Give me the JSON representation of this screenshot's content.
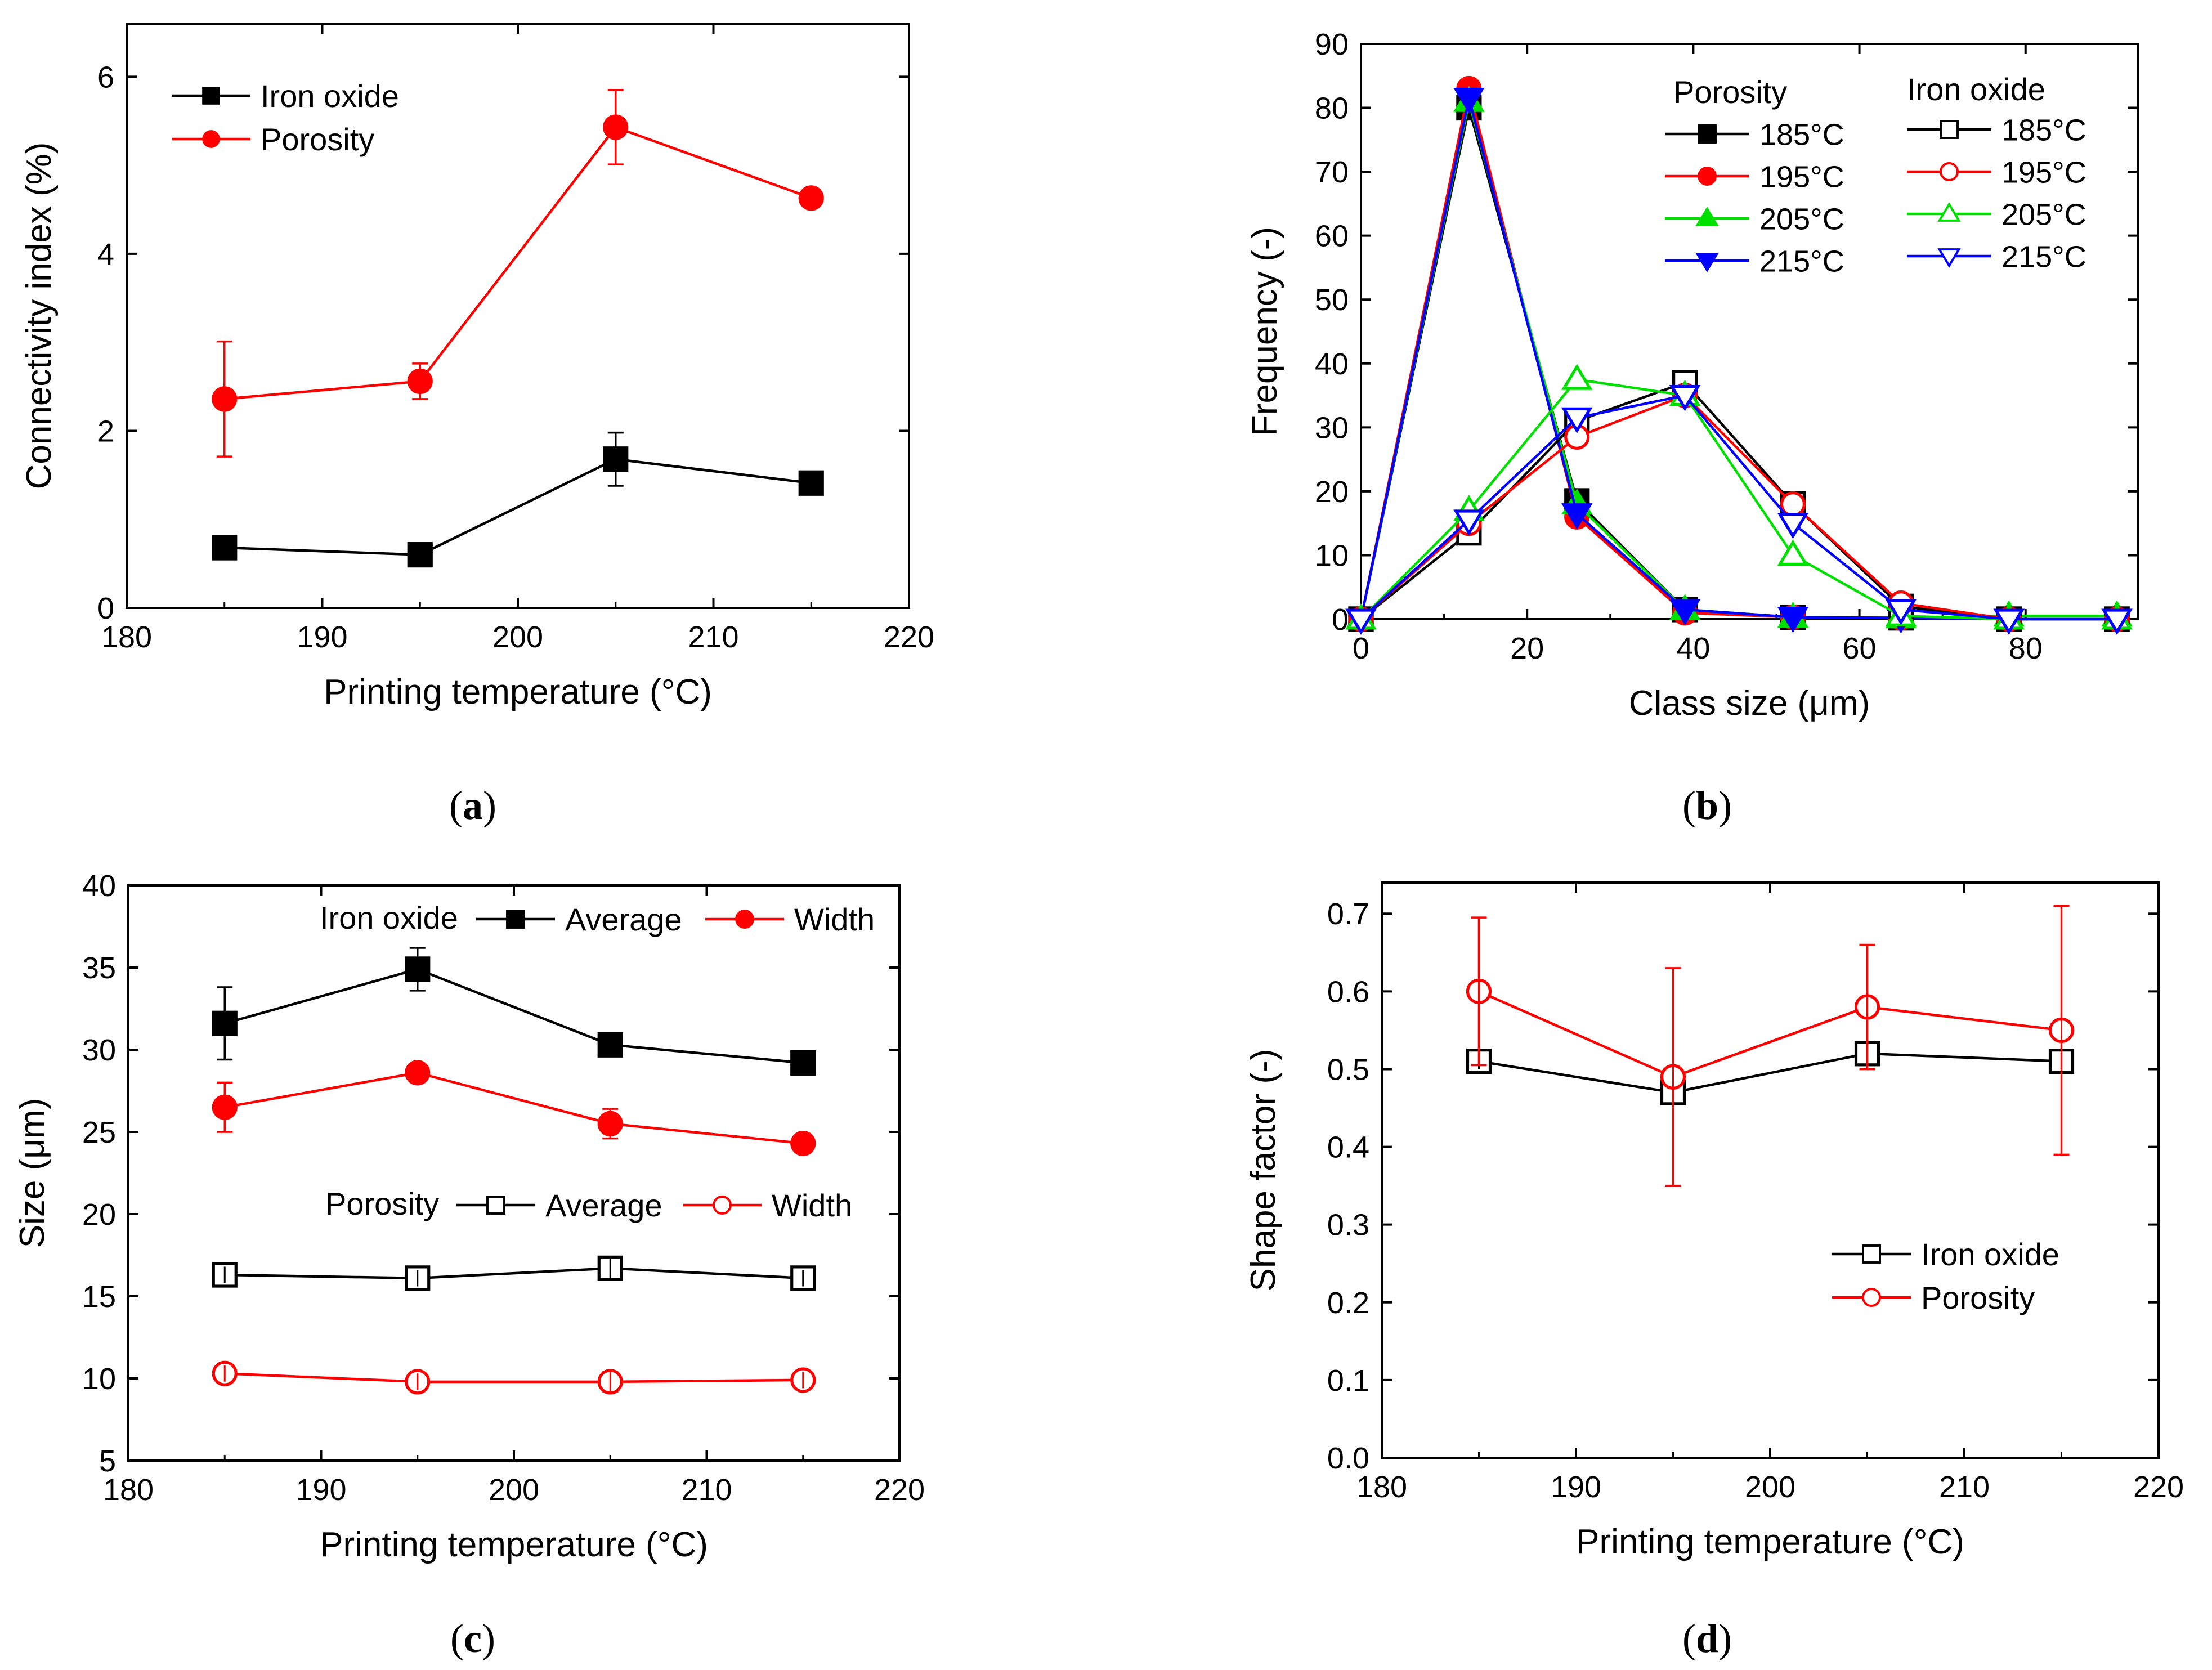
{
  "chart_data": [
    {
      "panel": "a",
      "caption_letter": "a",
      "type": "line",
      "xlabel": "Printing temperature (°C)",
      "ylabel": "Connectivity index  (%)",
      "xlim": [
        180,
        220
      ],
      "ylim": [
        0,
        6.6
      ],
      "xticks": [
        180,
        190,
        200,
        210,
        220
      ],
      "yticks": [
        0,
        2,
        4,
        6
      ],
      "legend": [
        {
          "label": "Iron oxide",
          "series": 0
        },
        {
          "label": "Porosity",
          "series": 1
        }
      ],
      "series": [
        {
          "name": "Iron oxide",
          "color": "#000000",
          "marker": "square",
          "filled": true,
          "x": [
            185,
            195,
            205,
            215
          ],
          "y": [
            0.68,
            0.6,
            1.68,
            1.41
          ],
          "err": [
            0.05,
            0.05,
            0.3,
            0.08
          ]
        },
        {
          "name": "Porosity",
          "color": "#ff0000",
          "marker": "circle",
          "filled": true,
          "x": [
            185,
            195,
            205,
            215
          ],
          "y": [
            2.36,
            2.56,
            5.43,
            4.63
          ],
          "err": [
            0.65,
            0.2,
            0.42,
            0.05
          ]
        }
      ]
    },
    {
      "panel": "b",
      "caption_letter": "b",
      "type": "line",
      "xlabel": "Class size (μm)",
      "ylabel": "Frequency  (-)",
      "xlim": [
        0,
        93.5
      ],
      "ylim": [
        0,
        90
      ],
      "xticks": [
        0,
        20,
        40,
        60,
        80
      ],
      "yticks": [
        0,
        10,
        20,
        30,
        40,
        50,
        60,
        70,
        80,
        90
      ],
      "legend_titles": [
        "Porosity",
        "Iron oxide"
      ],
      "legend": [
        {
          "label": "185°C",
          "series": 0
        },
        {
          "label": "195°C",
          "series": 1
        },
        {
          "label": "205°C",
          "series": 2
        },
        {
          "label": "215°C",
          "series": 3
        },
        {
          "label": "185°C",
          "series": 4
        },
        {
          "label": "195°C",
          "series": 5
        },
        {
          "label": "205°C",
          "series": 6
        },
        {
          "label": "215°C",
          "series": 7
        }
      ],
      "series": [
        {
          "name": "Porosity 185°C",
          "color": "#000000",
          "marker": "square",
          "filled": true,
          "x": [
            0,
            13,
            26,
            39,
            52,
            65,
            78,
            91
          ],
          "y": [
            0,
            80,
            18.5,
            1.5,
            0.3,
            0.2,
            0,
            0
          ]
        },
        {
          "name": "Porosity 195°C",
          "color": "#ff0000",
          "marker": "circle",
          "filled": true,
          "x": [
            0,
            13,
            26,
            39,
            52,
            65,
            78,
            91
          ],
          "y": [
            0,
            83,
            16,
            1,
            0.3,
            0.2,
            0,
            0
          ]
        },
        {
          "name": "Porosity 205°C",
          "color": "#00e000",
          "marker": "triangle-up",
          "filled": true,
          "x": [
            0,
            13,
            26,
            39,
            52,
            65,
            78,
            91
          ],
          "y": [
            0,
            81,
            18,
            1.5,
            0.3,
            0.2,
            0.5,
            0.5
          ]
        },
        {
          "name": "Porosity 215°C",
          "color": "#0000ff",
          "marker": "triangle-down",
          "filled": true,
          "x": [
            0,
            13,
            26,
            39,
            52,
            65,
            78,
            91
          ],
          "y": [
            0,
            81.5,
            16.5,
            1.5,
            0.3,
            0.2,
            0,
            0
          ]
        },
        {
          "name": "Iron oxide 185°C",
          "color": "#000000",
          "marker": "square",
          "filled": false,
          "x": [
            0,
            13,
            26,
            39,
            52,
            65,
            78,
            91
          ],
          "y": [
            0,
            13.5,
            31,
            37,
            18,
            2,
            0,
            0
          ]
        },
        {
          "name": "Iron oxide 195°C",
          "color": "#ff0000",
          "marker": "circle",
          "filled": false,
          "x": [
            0,
            13,
            26,
            39,
            52,
            65,
            78,
            91
          ],
          "y": [
            0,
            15,
            28.5,
            35,
            18,
            2.5,
            0,
            0
          ]
        },
        {
          "name": "Iron oxide 205°C",
          "color": "#00e000",
          "marker": "triangle-up",
          "filled": false,
          "x": [
            0,
            13,
            26,
            39,
            52,
            65,
            78,
            91
          ],
          "y": [
            0,
            17,
            37.5,
            35,
            10,
            0.5,
            0,
            0
          ]
        },
        {
          "name": "Iron oxide 215°C",
          "color": "#0000ff",
          "marker": "triangle-down",
          "filled": false,
          "x": [
            0,
            13,
            26,
            39,
            52,
            65,
            78,
            91
          ],
          "y": [
            0,
            15.5,
            31.5,
            35,
            15,
            1.5,
            0,
            0
          ]
        }
      ]
    },
    {
      "panel": "c",
      "caption_letter": "c",
      "type": "line",
      "xlabel": "Printing temperature (°C)",
      "ylabel": "Size  (μm)",
      "xlim": [
        180,
        220
      ],
      "ylim": [
        5,
        40
      ],
      "xticks": [
        180,
        190,
        200,
        210,
        220
      ],
      "yticks": [
        5,
        10,
        15,
        20,
        25,
        30,
        35,
        40
      ],
      "legend_groups": [
        {
          "title": "Iron oxide",
          "entries": [
            {
              "label": "Average",
              "series": 0
            },
            {
              "label": "Width",
              "series": 1
            }
          ]
        },
        {
          "title": "Porosity",
          "entries": [
            {
              "label": "Average",
              "series": 2
            },
            {
              "label": "Width",
              "series": 3
            }
          ]
        }
      ],
      "series": [
        {
          "name": "Iron oxide Average",
          "color": "#000000",
          "marker": "square",
          "filled": true,
          "x": [
            185,
            195,
            205,
            215
          ],
          "y": [
            31.6,
            34.9,
            30.3,
            29.2
          ],
          "err": [
            2.2,
            1.3,
            0.5,
            0.6
          ]
        },
        {
          "name": "Iron oxide Width",
          "color": "#ff0000",
          "marker": "circle",
          "filled": true,
          "x": [
            185,
            195,
            205,
            215
          ],
          "y": [
            26.5,
            28.6,
            25.5,
            24.3
          ],
          "err": [
            1.5,
            0.3,
            0.9,
            0.3
          ]
        },
        {
          "name": "Porosity Average",
          "color": "#000000",
          "marker": "square",
          "filled": false,
          "x": [
            185,
            195,
            205,
            215
          ],
          "y": [
            16.3,
            16.1,
            16.7,
            16.1
          ],
          "err": [
            0.5,
            0.5,
            0.6,
            0.5
          ]
        },
        {
          "name": "Porosity Width",
          "color": "#ff0000",
          "marker": "circle",
          "filled": false,
          "x": [
            185,
            195,
            205,
            215
          ],
          "y": [
            10.3,
            9.8,
            9.8,
            9.9
          ],
          "err": [
            0.5,
            0.5,
            0.6,
            0.5
          ]
        }
      ]
    },
    {
      "panel": "d",
      "caption_letter": "d",
      "type": "line",
      "xlabel": "Printing temperature (°C)",
      "ylabel": "Shape factor  (-)",
      "xlim": [
        180,
        220
      ],
      "ylim": [
        0,
        0.74
      ],
      "xticks": [
        180,
        190,
        200,
        210,
        220
      ],
      "yticks": [
        0.0,
        0.1,
        0.2,
        0.3,
        0.4,
        0.5,
        0.6,
        0.7
      ],
      "legend": [
        {
          "label": "Iron oxide",
          "series": 0
        },
        {
          "label": "Porosity",
          "series": 1
        }
      ],
      "series": [
        {
          "name": "Iron oxide",
          "color": "#000000",
          "marker": "square",
          "filled": false,
          "x": [
            185,
            195,
            205,
            215
          ],
          "y": [
            0.51,
            0.47,
            0.52,
            0.51
          ],
          "err": [
            0.01,
            0.01,
            0.01,
            0.01
          ]
        },
        {
          "name": "Porosity",
          "color": "#ff0000",
          "marker": "circle",
          "filled": false,
          "x": [
            185,
            195,
            205,
            215
          ],
          "y": [
            0.6,
            0.49,
            0.58,
            0.55
          ],
          "err": [
            0.095,
            0.14,
            0.08,
            0.16
          ]
        }
      ]
    }
  ]
}
